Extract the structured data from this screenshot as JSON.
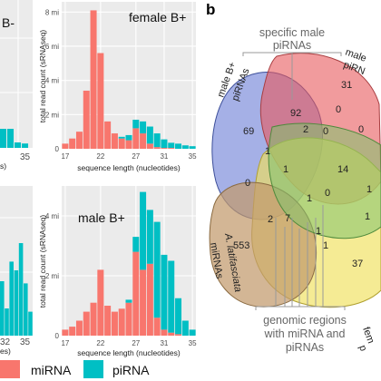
{
  "colors": {
    "miRNA": "#f8766d",
    "piRNA": "#00bfc4"
  },
  "chart_data": [
    {
      "type": "bar",
      "stacked": true,
      "title": "female B+",
      "xlabel": "sequence length (nucleotides)",
      "ylabel": "total read count (sRNAseq)",
      "x": [
        17,
        18,
        19,
        20,
        21,
        22,
        23,
        24,
        25,
        26,
        27,
        28,
        29,
        30,
        31,
        32,
        33,
        34,
        35
      ],
      "xticks": [
        "17",
        "22",
        "27",
        "31",
        "35"
      ],
      "yticks": [
        "0",
        "2 mi",
        "4 mi",
        "6 mi",
        "8 mi"
      ],
      "ylim": [
        0,
        8.6
      ],
      "series": [
        {
          "name": "miRNA",
          "values": [
            0.3,
            0.6,
            1.0,
            3.4,
            8.1,
            5.6,
            1.6,
            0.9,
            0.6,
            0.5,
            1.2,
            0.9,
            0.3,
            0.1,
            0.05,
            0.05,
            0,
            0,
            0
          ]
        },
        {
          "name": "piRNA",
          "values": [
            0,
            0,
            0,
            0,
            0,
            0,
            0,
            0,
            0.1,
            0.3,
            0.5,
            0.7,
            1.0,
            0.8,
            0.5,
            0.3,
            0.3,
            0.2,
            0.15
          ]
        }
      ]
    },
    {
      "type": "bar",
      "stacked": true,
      "title": "male B+",
      "xlabel": "sequence length (nucleotides)",
      "ylabel": "total read count (sRNAseq)",
      "x": [
        17,
        18,
        19,
        20,
        21,
        22,
        23,
        24,
        25,
        26,
        27,
        28,
        29,
        30,
        31,
        32,
        33,
        34,
        35
      ],
      "xticks": [
        "17",
        "22",
        "27",
        "31",
        "35"
      ],
      "yticks": [
        "0",
        "2 mi",
        "4 mi"
      ],
      "ylim": [
        0,
        5.0
      ],
      "series": [
        {
          "name": "miRNA",
          "values": [
            0.2,
            0.3,
            0.5,
            0.8,
            1.1,
            2.2,
            1.0,
            0.8,
            0.9,
            1.1,
            2.8,
            2.2,
            2.4,
            0.6,
            0.2,
            0.1,
            0.05,
            0,
            0
          ]
        },
        {
          "name": "piRNA",
          "values": [
            0,
            0,
            0,
            0,
            0,
            0,
            0,
            0,
            0,
            0.1,
            0.5,
            2.6,
            1.8,
            3.2,
            2.5,
            2.4,
            1.2,
            0.5,
            0.2
          ]
        }
      ]
    },
    {
      "type": "bar",
      "stacked": true,
      "title": "B-",
      "xticks": [
        "35"
      ],
      "series": [
        {
          "name": "piRNA",
          "values": [
            0.35,
            0.35,
            0.1,
            0.08
          ]
        }
      ]
    },
    {
      "type": "bar",
      "stacked": true,
      "xticks": [
        "32",
        "35"
      ],
      "series": [
        {
          "name": "piRNA",
          "values": [
            0.5,
            0.25,
            0.68,
            0.6,
            0.85,
            0.48,
            0.22
          ]
        }
      ]
    }
  ],
  "left_partial": {
    "top_xtick_suffix": "35",
    "bottom_xtick_a": "32",
    "bottom_xtick_b": "35",
    "top_title": "B-",
    "xlabel_fragment": "s)",
    "xlabel_fragment2": "es)"
  },
  "legend": {
    "miRNA": "miRNA",
    "piRNA": "piRNA"
  },
  "venn": {
    "panel_label": "b",
    "title_male_specific": "specific male",
    "title_male_specific2": "piRNAs",
    "set_labels": {
      "male_b_plus": "male B+",
      "male_b_plus2": "piRNAs",
      "female": "male",
      "female2": "piRN",
      "a_latifasciata": "A. latifasciata",
      "a_latifasciata2": "miRNAs",
      "fem": "fem",
      "fem2": "p"
    },
    "bottom_note": [
      "genomic regions",
      "with miRNA and",
      "piRNAs"
    ],
    "counts": {
      "c31": "31",
      "c92": "92",
      "c69": "69",
      "c0a": "0",
      "c2a": "2",
      "c0b": "0",
      "c0c": "0",
      "c1a": "1",
      "c1b": "1",
      "c14": "14",
      "c0d": "0",
      "c1c": "1",
      "c553": "553",
      "c2b": "2",
      "c7": "7",
      "c1d": "1",
      "c1e": "1",
      "c37": "37",
      "c1f": "1",
      "c0e": "0",
      "c1g": "1"
    }
  }
}
